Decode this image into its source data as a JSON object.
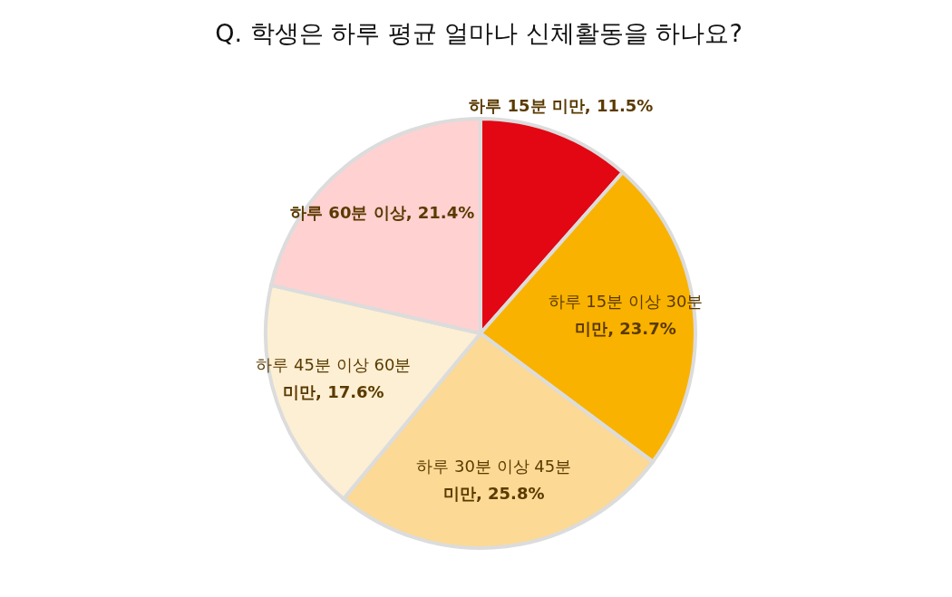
{
  "chart_data": {
    "type": "pie",
    "title": "Q. 학생은 하루 평균 얼마나 신체활동을 하나요?",
    "categories": [
      "하루 15분 미만",
      "하루 15분 이상 30분 미만",
      "하루 30분 이상 45분 미만",
      "하루 45분 이상 60분 미만",
      "하루 60분 이상"
    ],
    "values": [
      11.5,
      23.7,
      25.8,
      17.6,
      21.4
    ],
    "value_labels": [
      "11.5%",
      "23.7%",
      "25.8%",
      "17.6%",
      "21.4%"
    ],
    "colors": [
      "#e30613",
      "#f9b200",
      "#fcd994",
      "#fdefd3",
      "#ffd1d1"
    ]
  }
}
